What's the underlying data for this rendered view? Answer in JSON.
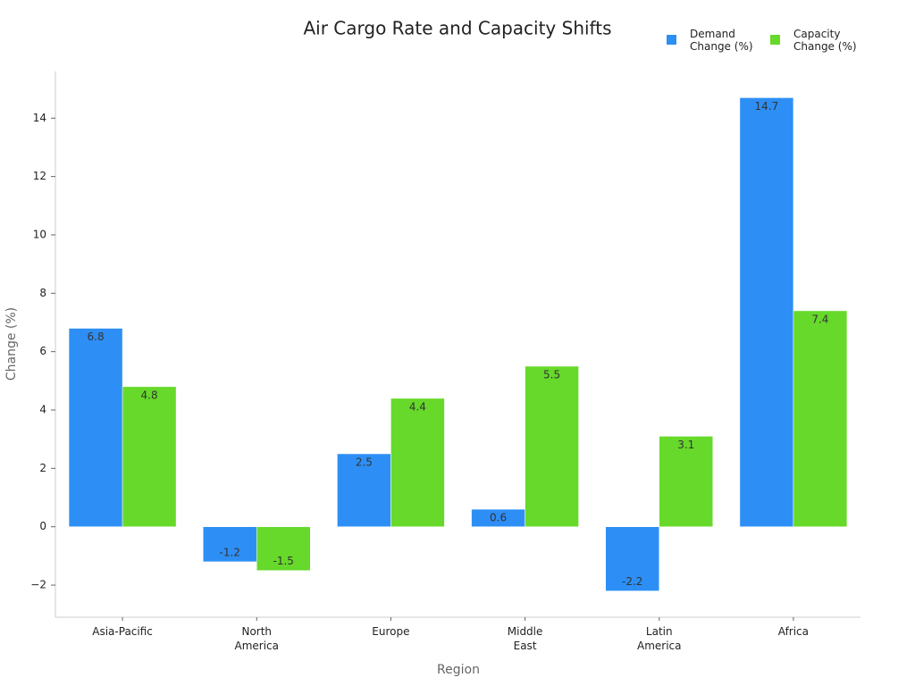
{
  "chart_data": {
    "type": "bar",
    "title": "Air Cargo Rate and Capacity Shifts",
    "x_label": "Region",
    "y_label": "Change (%)",
    "categories": [
      "Asia-Pacific",
      "North\nAmerica",
      "Europe",
      "Middle\nEast",
      "Latin\nAmerica",
      "Africa"
    ],
    "series": [
      {
        "name": "Demand\nChange (%)",
        "color": "#2d8ff5",
        "values": [
          6.8,
          -1.2,
          2.5,
          0.6,
          -2.2,
          14.7
        ]
      },
      {
        "name": "Capacity\nChange (%)",
        "color": "#66d92a",
        "values": [
          4.8,
          -1.5,
          4.4,
          5.5,
          3.1,
          7.4
        ]
      }
    ],
    "ylim": [
      -3.1,
      15.6
    ],
    "yticks": [
      {
        "value": -2,
        "label": "−2"
      },
      0,
      2,
      4,
      6,
      8,
      10,
      12,
      14
    ],
    "grid": false,
    "legend": "top-right"
  }
}
